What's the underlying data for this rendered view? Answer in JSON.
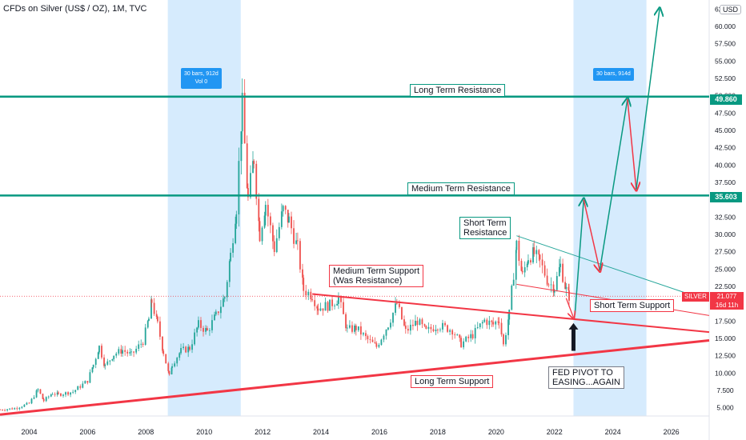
{
  "header": {
    "title": "CFDs on Silver (US$ / OZ), 1M, TVC",
    "currency": "USD"
  },
  "colors": {
    "up": "#26a69a",
    "down": "#ef5350",
    "resistance": "#089981",
    "support": "#f23645",
    "highlight": "#bbdefb",
    "teal_line": "#26a69a"
  },
  "chart_data": {
    "type": "candlestick",
    "instrument": "SILVER",
    "timeframe": "1M",
    "x_ticks": [
      "2004",
      "2006",
      "2008",
      "2010",
      "2012",
      "2014",
      "2016",
      "2018",
      "2020",
      "2022",
      "2024",
      "2026"
    ],
    "y_ticks": [
      "5.000",
      "7.500",
      "10.000",
      "12.500",
      "15.000",
      "17.500",
      "20.000",
      "22.500",
      "25.000",
      "27.500",
      "30.000",
      "32.500",
      "35.000",
      "37.500",
      "40.000",
      "42.500",
      "45.000",
      "47.500",
      "50.000",
      "52.500",
      "55.000",
      "57.500",
      "60.000",
      "62.500"
    ],
    "ylim": [
      3.8,
      63.8
    ],
    "xlim": [
      2003.0,
      2027.3
    ],
    "horizontal_levels": [
      {
        "label": "Long Term Resistance",
        "value": 49.86,
        "tag": "49.860"
      },
      {
        "label": "Medium Term Resistance",
        "value": 35.603,
        "tag": "35.603"
      }
    ],
    "trend_lines": [
      {
        "label": "Long Term Support",
        "from": [
          2003.0,
          4.0
        ],
        "to": [
          2027.3,
          14.7
        ]
      },
      {
        "label": "Medium Term Support (Was Resistance)",
        "from": [
          2013.7,
          21.4
        ],
        "to": [
          2027.3,
          15.9
        ]
      },
      {
        "label": "Short Term Resistance",
        "from": [
          2020.7,
          29.8
        ],
        "to": [
          2027.3,
          20.4
        ]
      },
      {
        "label": "Short Term Support",
        "from": [
          2020.7,
          22.8
        ],
        "to": [
          2027.3,
          18.3
        ]
      }
    ],
    "ranges": [
      {
        "from": 2008.75,
        "to": 2011.25,
        "label_lines": [
          "30 bars, 912d",
          "Vol 0"
        ]
      },
      {
        "from": 2022.65,
        "to": 2025.15,
        "label_lines": [
          "30 bars, 914d"
        ]
      }
    ],
    "projection_path": [
      [
        2022.7,
        18.4
      ],
      [
        2023.0,
        35.0
      ],
      [
        2023.55,
        24.8
      ],
      [
        2024.5,
        49.5
      ],
      [
        2024.8,
        36.5
      ],
      [
        2025.6,
        62.5
      ]
    ],
    "last_price": {
      "symbol": "SILVER",
      "value": "21.077",
      "countdown": "16d 11h",
      "numeric": 21.077
    },
    "annotation_arrow": {
      "at": [
        2022.65,
        13.2
      ],
      "to": [
        2022.65,
        17.2
      ]
    },
    "monthly_closes": [
      [
        2003.0,
        4.7
      ],
      [
        2003.5,
        4.9
      ],
      [
        2004.0,
        5.6
      ],
      [
        2004.3,
        7.6
      ],
      [
        2004.5,
        6.0
      ],
      [
        2004.8,
        7.1
      ],
      [
        2005.0,
        6.9
      ],
      [
        2005.5,
        7.3
      ],
      [
        2006.0,
        8.9
      ],
      [
        2006.2,
        11.2
      ],
      [
        2006.4,
        13.8
      ],
      [
        2006.6,
        11.0
      ],
      [
        2006.9,
        12.7
      ],
      [
        2007.2,
        13.3
      ],
      [
        2007.5,
        12.6
      ],
      [
        2007.9,
        14.6
      ],
      [
        2008.1,
        17.8
      ],
      [
        2008.2,
        20.3
      ],
      [
        2008.4,
        17.0
      ],
      [
        2008.6,
        13.0
      ],
      [
        2008.8,
        9.5
      ],
      [
        2008.9,
        11.3
      ],
      [
        2009.2,
        13.2
      ],
      [
        2009.5,
        13.6
      ],
      [
        2009.8,
        17.0
      ],
      [
        2010.1,
        16.0
      ],
      [
        2010.4,
        18.3
      ],
      [
        2010.7,
        21.0
      ],
      [
        2010.9,
        27.0
      ],
      [
        2011.1,
        34.0
      ],
      [
        2011.3,
        48.5
      ],
      [
        2011.5,
        35.0
      ],
      [
        2011.7,
        41.0
      ],
      [
        2011.9,
        30.0
      ],
      [
        2012.1,
        34.5
      ],
      [
        2012.4,
        28.0
      ],
      [
        2012.7,
        33.5
      ],
      [
        2012.9,
        32.0
      ],
      [
        2013.2,
        28.0
      ],
      [
        2013.4,
        22.0
      ],
      [
        2013.7,
        21.2
      ],
      [
        2013.9,
        19.4
      ],
      [
        2014.3,
        19.8
      ],
      [
        2014.6,
        20.8
      ],
      [
        2014.9,
        16.2
      ],
      [
        2015.2,
        16.5
      ],
      [
        2015.6,
        14.8
      ],
      [
        2015.9,
        13.8
      ],
      [
        2016.3,
        17.0
      ],
      [
        2016.6,
        20.0
      ],
      [
        2016.9,
        16.0
      ],
      [
        2017.3,
        17.5
      ],
      [
        2017.6,
        16.0
      ],
      [
        2018.0,
        16.9
      ],
      [
        2018.5,
        16.2
      ],
      [
        2018.8,
        14.2
      ],
      [
        2019.2,
        15.5
      ],
      [
        2019.6,
        17.6
      ],
      [
        2019.9,
        17.0
      ],
      [
        2020.1,
        17.8
      ],
      [
        2020.25,
        14.0
      ],
      [
        2020.45,
        18.5
      ],
      [
        2020.6,
        24.4
      ],
      [
        2020.7,
        28.5
      ],
      [
        2020.9,
        24.0
      ],
      [
        2021.1,
        26.8
      ],
      [
        2021.3,
        27.2
      ],
      [
        2021.5,
        26.0
      ],
      [
        2021.8,
        23.0
      ],
      [
        2022.0,
        22.4
      ],
      [
        2022.2,
        25.5
      ],
      [
        2022.4,
        22.0
      ],
      [
        2022.5,
        21.1
      ]
    ]
  },
  "labels": {
    "long_term_resistance": "Long Term Resistance",
    "medium_term_resistance": "Medium Term Resistance",
    "short_term_resistance": "Short Term\nResistance",
    "medium_term_support": "Medium Term Support\n(Was Resistance)",
    "short_term_support": "Short Term Support",
    "long_term_support": "Long Term Support",
    "fed_pivot": "FED PIVOT TO\nEASING...AGAIN"
  }
}
